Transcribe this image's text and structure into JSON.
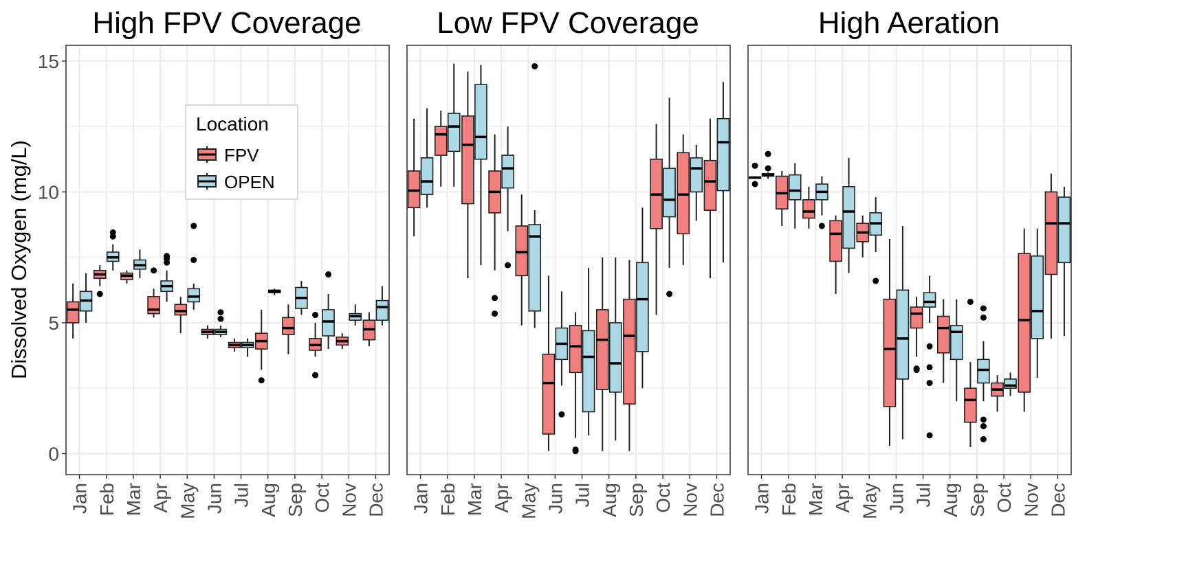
{
  "figure": {
    "ylabel": "Dissolved Oxygen (mg/L)",
    "legend": {
      "title": "Location",
      "entries": [
        "FPV",
        "OPEN"
      ]
    }
  },
  "colors": {
    "FPV": "#f08080",
    "OPEN": "#add8e6",
    "grid": "#ebebeb",
    "frame": "#333333"
  },
  "chart_data": [
    {
      "type": "box",
      "title": "High FPV Coverage",
      "months": [
        "Jan",
        "Feb",
        "Mar",
        "Apr",
        "May",
        "Jun",
        "Jul",
        "Aug",
        "Sep",
        "Oct",
        "Nov",
        "Dec"
      ],
      "ylim": [
        -0.8,
        15.6
      ],
      "yticks": [
        0,
        5,
        10,
        15
      ],
      "series": [
        {
          "name": "FPV",
          "boxes": [
            {
              "lo": 4.4,
              "q1": 5.0,
              "med": 5.5,
              "q3": 5.8,
              "hi": 6.5,
              "out": []
            },
            {
              "lo": 6.4,
              "q1": 6.7,
              "med": 6.85,
              "q3": 7.0,
              "hi": 7.2,
              "out": [
                6.1
              ]
            },
            {
              "lo": 6.5,
              "q1": 6.65,
              "med": 6.8,
              "q3": 6.9,
              "hi": 7.0,
              "out": []
            },
            {
              "lo": 5.2,
              "q1": 5.35,
              "med": 5.5,
              "q3": 6.0,
              "hi": 6.3,
              "out": [
                7.0
              ]
            },
            {
              "lo": 4.6,
              "q1": 5.3,
              "med": 5.45,
              "q3": 5.7,
              "hi": 6.0,
              "out": []
            },
            {
              "lo": 4.4,
              "q1": 4.55,
              "med": 4.65,
              "q3": 4.75,
              "hi": 4.9,
              "out": []
            },
            {
              "lo": 3.9,
              "q1": 4.05,
              "med": 4.15,
              "q3": 4.25,
              "hi": 4.4,
              "out": []
            },
            {
              "lo": 3.2,
              "q1": 4.0,
              "med": 4.3,
              "q3": 4.6,
              "hi": 5.5,
              "out": [
                2.8
              ]
            },
            {
              "lo": 3.8,
              "q1": 4.55,
              "med": 4.8,
              "q3": 5.2,
              "hi": 5.7,
              "out": []
            },
            {
              "lo": 3.7,
              "q1": 3.95,
              "med": 4.15,
              "q3": 4.4,
              "hi": 5.0,
              "out": [
                3.0,
                5.3
              ]
            },
            {
              "lo": 4.0,
              "q1": 4.15,
              "med": 4.3,
              "q3": 4.45,
              "hi": 4.6,
              "out": []
            },
            {
              "lo": 4.1,
              "q1": 4.35,
              "med": 4.75,
              "q3": 5.1,
              "hi": 5.4,
              "out": []
            }
          ]
        },
        {
          "name": "OPEN",
          "boxes": [
            {
              "lo": 5.0,
              "q1": 5.45,
              "med": 5.85,
              "q3": 6.2,
              "hi": 6.9,
              "out": []
            },
            {
              "lo": 7.0,
              "q1": 7.35,
              "med": 7.5,
              "q3": 7.7,
              "hi": 8.0,
              "out": [
                8.3,
                8.45
              ]
            },
            {
              "lo": 6.7,
              "q1": 7.05,
              "med": 7.2,
              "q3": 7.4,
              "hi": 7.8,
              "out": []
            },
            {
              "lo": 5.8,
              "q1": 6.2,
              "med": 6.4,
              "q3": 6.6,
              "hi": 7.0,
              "out": [
                7.3,
                7.45,
                7.55
              ]
            },
            {
              "lo": 5.5,
              "q1": 5.8,
              "med": 6.0,
              "q3": 6.3,
              "hi": 6.5,
              "out": [
                7.4,
                8.7
              ]
            },
            {
              "lo": 4.45,
              "q1": 4.55,
              "med": 4.65,
              "q3": 4.75,
              "hi": 4.9,
              "out": [
                5.15,
                5.4
              ]
            },
            {
              "lo": 3.7,
              "q1": 4.05,
              "med": 4.15,
              "q3": 4.25,
              "hi": 4.4,
              "out": []
            },
            {
              "lo": 6.05,
              "q1": 6.15,
              "med": 6.2,
              "q3": 6.25,
              "hi": 6.3,
              "out": []
            },
            {
              "lo": 5.3,
              "q1": 5.55,
              "med": 5.95,
              "q3": 6.35,
              "hi": 6.6,
              "out": []
            },
            {
              "lo": 4.0,
              "q1": 4.5,
              "med": 5.05,
              "q3": 5.5,
              "hi": 6.1,
              "out": [
                6.85
              ]
            },
            {
              "lo": 4.9,
              "q1": 5.1,
              "med": 5.25,
              "q3": 5.35,
              "hi": 5.7,
              "out": []
            },
            {
              "lo": 4.9,
              "q1": 5.1,
              "med": 5.6,
              "q3": 5.85,
              "hi": 6.4,
              "out": []
            }
          ]
        }
      ]
    },
    {
      "type": "box",
      "title": "Low FPV Coverage",
      "months": [
        "Jan",
        "Feb",
        "Mar",
        "Apr",
        "May",
        "Jun",
        "Jul",
        "Aug",
        "Sep",
        "Oct",
        "Nov",
        "Dec"
      ],
      "ylim": [
        -0.8,
        15.6
      ],
      "yticks": [],
      "series": [
        {
          "name": "FPV",
          "boxes": [
            {
              "lo": 8.3,
              "q1": 9.4,
              "med": 10.05,
              "q3": 10.8,
              "hi": 12.8,
              "out": []
            },
            {
              "lo": 10.2,
              "q1": 11.4,
              "med": 12.2,
              "q3": 12.5,
              "hi": 13.1,
              "out": []
            },
            {
              "lo": 6.7,
              "q1": 9.55,
              "med": 11.8,
              "q3": 12.9,
              "hi": 14.6,
              "out": []
            },
            {
              "lo": 7.0,
              "q1": 9.2,
              "med": 10.0,
              "q3": 10.8,
              "hi": 12.2,
              "out": [
                5.35,
                5.95
              ]
            },
            {
              "lo": 4.9,
              "q1": 6.8,
              "med": 7.7,
              "q3": 8.7,
              "hi": 9.9,
              "out": []
            },
            {
              "lo": 0.1,
              "q1": 0.75,
              "med": 2.7,
              "q3": 3.8,
              "hi": 6.8,
              "out": []
            },
            {
              "lo": 0.6,
              "q1": 3.1,
              "med": 4.1,
              "q3": 4.9,
              "hi": 5.4,
              "out": [
                0.1,
                0.15
              ]
            },
            {
              "lo": 0.1,
              "q1": 2.45,
              "med": 4.35,
              "q3": 5.5,
              "hi": 7.5,
              "out": []
            },
            {
              "lo": 0.1,
              "q1": 1.9,
              "med": 4.5,
              "q3": 5.9,
              "hi": 7.4,
              "out": []
            },
            {
              "lo": 5.3,
              "q1": 8.6,
              "med": 9.9,
              "q3": 11.25,
              "hi": 12.6,
              "out": []
            },
            {
              "lo": 7.2,
              "q1": 8.4,
              "med": 9.9,
              "q3": 11.5,
              "hi": 12.2,
              "out": []
            },
            {
              "lo": 6.7,
              "q1": 9.3,
              "med": 10.4,
              "q3": 11.2,
              "hi": 12.8,
              "out": []
            }
          ]
        },
        {
          "name": "OPEN",
          "boxes": [
            {
              "lo": 9.4,
              "q1": 9.9,
              "med": 10.4,
              "q3": 11.3,
              "hi": 13.2,
              "out": []
            },
            {
              "lo": 10.2,
              "q1": 11.55,
              "med": 12.5,
              "q3": 13.0,
              "hi": 14.9,
              "out": []
            },
            {
              "lo": 7.2,
              "q1": 11.25,
              "med": 12.1,
              "q3": 14.1,
              "hi": 14.85,
              "out": []
            },
            {
              "lo": 8.5,
              "q1": 10.15,
              "med": 10.9,
              "q3": 11.4,
              "hi": 12.5,
              "out": [
                7.2
              ]
            },
            {
              "lo": 4.8,
              "q1": 5.45,
              "med": 8.3,
              "q3": 8.75,
              "hi": 9.3,
              "out": [
                14.8
              ]
            },
            {
              "lo": 2.6,
              "q1": 3.6,
              "med": 4.2,
              "q3": 4.8,
              "hi": 6.2,
              "out": [
                1.5
              ]
            },
            {
              "lo": 0.7,
              "q1": 1.6,
              "med": 3.7,
              "q3": 4.7,
              "hi": 7.1,
              "out": []
            },
            {
              "lo": 0.5,
              "q1": 2.35,
              "med": 3.45,
              "q3": 5.0,
              "hi": 7.5,
              "out": []
            },
            {
              "lo": 2.5,
              "q1": 3.9,
              "med": 5.9,
              "q3": 7.3,
              "hi": 9.4,
              "out": []
            },
            {
              "lo": 7.1,
              "q1": 9.05,
              "med": 9.7,
              "q3": 10.9,
              "hi": 13.6,
              "out": [
                6.1
              ]
            },
            {
              "lo": 8.9,
              "q1": 10.0,
              "med": 10.9,
              "q3": 11.3,
              "hi": 11.8,
              "out": []
            },
            {
              "lo": 7.3,
              "q1": 10.05,
              "med": 11.9,
              "q3": 12.8,
              "hi": 14.2,
              "out": []
            }
          ]
        }
      ]
    },
    {
      "type": "box",
      "title": "High Aeration",
      "months": [
        "Jan",
        "Feb",
        "Mar",
        "Apr",
        "May",
        "Jun",
        "Jul",
        "Aug",
        "Sep",
        "Oct",
        "Nov",
        "Dec"
      ],
      "ylim": [
        -0.8,
        15.6
      ],
      "yticks": [],
      "series": [
        {
          "name": "FPV",
          "boxes": [
            {
              "lo": 10.5,
              "q1": 10.53,
              "med": 10.55,
              "q3": 10.57,
              "hi": 10.6,
              "out": [
                10.3,
                11.0
              ]
            },
            {
              "lo": 8.7,
              "q1": 9.35,
              "med": 9.95,
              "q3": 10.6,
              "hi": 10.8,
              "out": []
            },
            {
              "lo": 8.6,
              "q1": 9.0,
              "med": 9.25,
              "q3": 9.7,
              "hi": 10.2,
              "out": []
            },
            {
              "lo": 6.1,
              "q1": 7.35,
              "med": 8.4,
              "q3": 8.9,
              "hi": 9.1,
              "out": []
            },
            {
              "lo": 7.5,
              "q1": 8.1,
              "med": 8.45,
              "q3": 8.8,
              "hi": 9.1,
              "out": []
            },
            {
              "lo": 0.3,
              "q1": 1.8,
              "med": 4.0,
              "q3": 5.9,
              "hi": 8.2,
              "out": []
            },
            {
              "lo": 3.7,
              "q1": 4.8,
              "med": 5.35,
              "q3": 5.6,
              "hi": 6.0,
              "out": [
                3.2,
                3.25
              ]
            },
            {
              "lo": 2.7,
              "q1": 3.85,
              "med": 4.8,
              "q3": 5.25,
              "hi": 5.9,
              "out": []
            },
            {
              "lo": 0.25,
              "q1": 1.2,
              "med": 2.05,
              "q3": 2.5,
              "hi": 3.5,
              "out": [
                5.8
              ]
            },
            {
              "lo": 1.6,
              "q1": 2.2,
              "med": 2.45,
              "q3": 2.7,
              "hi": 3.0,
              "out": []
            },
            {
              "lo": 1.6,
              "q1": 2.35,
              "med": 5.1,
              "q3": 7.65,
              "hi": 8.6,
              "out": []
            },
            {
              "lo": 4.4,
              "q1": 6.85,
              "med": 8.8,
              "q3": 10.0,
              "hi": 10.7,
              "out": []
            }
          ]
        },
        {
          "name": "OPEN",
          "boxes": [
            {
              "lo": 10.5,
              "q1": 10.6,
              "med": 10.65,
              "q3": 10.7,
              "hi": 10.75,
              "out": [
                10.9,
                11.45
              ]
            },
            {
              "lo": 8.6,
              "q1": 9.7,
              "med": 10.05,
              "q3": 10.65,
              "hi": 11.1,
              "out": []
            },
            {
              "lo": 9.1,
              "q1": 9.7,
              "med": 10.0,
              "q3": 10.3,
              "hi": 10.6,
              "out": [
                8.7
              ]
            },
            {
              "lo": 6.9,
              "q1": 7.85,
              "med": 9.25,
              "q3": 10.2,
              "hi": 11.3,
              "out": []
            },
            {
              "lo": 7.7,
              "q1": 8.35,
              "med": 8.8,
              "q3": 9.2,
              "hi": 9.8,
              "out": [
                6.6
              ]
            },
            {
              "lo": 0.55,
              "q1": 2.85,
              "med": 4.4,
              "q3": 6.25,
              "hi": 8.7,
              "out": []
            },
            {
              "lo": 5.0,
              "q1": 5.6,
              "med": 5.8,
              "q3": 6.15,
              "hi": 6.8,
              "out": [
                4.1,
                3.3,
                2.7,
                0.7
              ]
            },
            {
              "lo": 2.0,
              "q1": 3.6,
              "med": 4.65,
              "q3": 4.9,
              "hi": 5.9,
              "out": []
            },
            {
              "lo": 2.0,
              "q1": 2.7,
              "med": 3.2,
              "q3": 3.6,
              "hi": 4.3,
              "out": [
                5.55,
                5.2,
                1.3,
                1.05,
                0.55
              ]
            },
            {
              "lo": 2.2,
              "q1": 2.5,
              "med": 2.6,
              "q3": 2.85,
              "hi": 3.1,
              "out": []
            },
            {
              "lo": 2.9,
              "q1": 4.4,
              "med": 5.45,
              "q3": 7.55,
              "hi": 8.6,
              "out": []
            },
            {
              "lo": 4.5,
              "q1": 7.3,
              "med": 8.8,
              "q3": 9.8,
              "hi": 10.2,
              "out": []
            }
          ]
        }
      ]
    }
  ]
}
